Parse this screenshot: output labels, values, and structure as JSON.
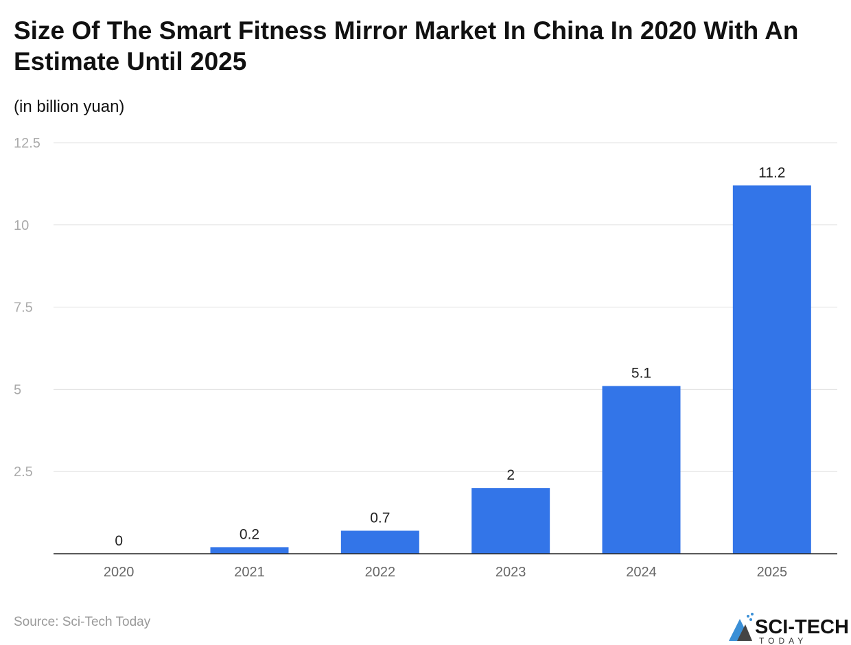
{
  "title": "Size Of The Smart Fitness Mirror Market In China In 2020 With An Estimate Until 2025",
  "subtitle": "(in billion yuan)",
  "source": "Source: Sci-Tech Today",
  "logo": {
    "text": "SCI-TECH",
    "subtext": "TODAY"
  },
  "chart_data": {
    "type": "bar",
    "categories": [
      "2020",
      "2021",
      "2022",
      "2023",
      "2024",
      "2025"
    ],
    "values": [
      0,
      0.2,
      0.7,
      2,
      5.1,
      11.2
    ],
    "labels": [
      "0",
      "0.2",
      "0.7",
      "2",
      "5.1",
      "11.2"
    ],
    "ylim": [
      0,
      12.5
    ],
    "yticks": [
      2.5,
      5,
      7.5,
      10,
      12.5
    ],
    "ytick_labels": [
      "2.5",
      "5",
      "7.5",
      "10",
      "12.5"
    ],
    "grid": true,
    "bar_color": "#3375e8"
  }
}
